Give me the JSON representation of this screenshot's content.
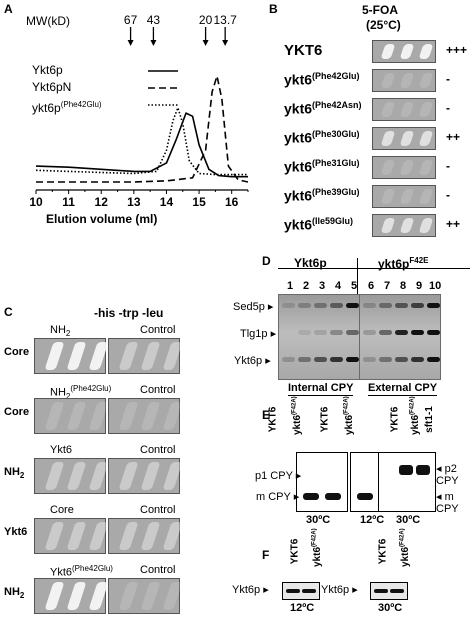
{
  "panelA": {
    "letter": "A",
    "mw_label": "MW(kD)",
    "mw_markers": [
      {
        "label": "67",
        "x": 12.9
      },
      {
        "label": "43",
        "x": 13.6
      },
      {
        "label": "20",
        "x": 15.2
      },
      {
        "label": "13.7",
        "x": 15.8
      }
    ],
    "legend": [
      {
        "name": "Ykt6p",
        "style": "solid"
      },
      {
        "name": "Ykt6pN",
        "style": "dashed"
      },
      {
        "name": "ykt6p(Phe42Glu)",
        "base": "ykt6p",
        "sup": "(Phe42Glu)",
        "style": "dotted"
      }
    ],
    "chart_data": {
      "type": "line",
      "xlabel": "Elution volume (ml)",
      "xlim": [
        10,
        16.5
      ],
      "x_ticks": [
        "10",
        "11",
        "12",
        "13",
        "14",
        "15",
        "16"
      ],
      "ylim": [
        0,
        1
      ],
      "series": [
        {
          "name": "Ykt6p",
          "style": "solid",
          "x": [
            10,
            11,
            12,
            13,
            13.5,
            14,
            14.3,
            14.6,
            14.8,
            15.0,
            15.3,
            15.6,
            16,
            16.5
          ],
          "y": [
            0.15,
            0.14,
            0.12,
            0.1,
            0.1,
            0.18,
            0.4,
            0.65,
            0.62,
            0.35,
            0.12,
            0.06,
            0.05,
            0.05
          ]
        },
        {
          "name": "Ykt6pN",
          "style": "dashed",
          "x": [
            10,
            11,
            12,
            13,
            14,
            14.8,
            15.2,
            15.4,
            15.55,
            15.7,
            15.9,
            16.2,
            16.5
          ],
          "y": [
            0.0,
            0.0,
            0.0,
            0.0,
            0.01,
            0.04,
            0.3,
            0.85,
            1.0,
            0.78,
            0.15,
            0.02,
            0.0
          ]
        },
        {
          "name": "ykt6p(Phe42Glu)",
          "style": "dotted",
          "x": [
            10,
            11,
            12,
            13,
            13.7,
            14.0,
            14.2,
            14.35,
            14.5,
            14.7,
            15.0,
            15.5,
            16,
            16.5
          ],
          "y": [
            0.11,
            0.1,
            0.09,
            0.08,
            0.1,
            0.3,
            0.58,
            0.7,
            0.55,
            0.2,
            0.08,
            0.07,
            0.07,
            0.07
          ]
        }
      ]
    }
  },
  "panelB": {
    "letter": "B",
    "title": "5-FOA",
    "subtitle": "(25°C)",
    "rows": [
      {
        "base": "YKT6",
        "sup": "",
        "growth": "+++",
        "level": 3
      },
      {
        "base": "ykt6",
        "sup": "(Phe42Glu)",
        "growth": "-",
        "level": 0
      },
      {
        "base": "ykt6",
        "sup": "(Phe42Asn)",
        "growth": "-",
        "level": 0
      },
      {
        "base": "ykt6",
        "sup": "(Phe30Glu)",
        "growth": "++",
        "level": 2
      },
      {
        "base": "ykt6",
        "sup": "(Phe31Glu)",
        "growth": "-",
        "level": 0
      },
      {
        "base": "ykt6",
        "sup": "(Phe39Glu)",
        "growth": "-",
        "level": 0
      },
      {
        "base": "ykt6",
        "sup": "(Ile59Glu)",
        "growth": "++",
        "level": 2
      }
    ]
  },
  "panelC": {
    "letter": "C",
    "header": "-his -trp -leu",
    "rows": [
      {
        "row_label": "Core",
        "left_base": "NH",
        "left_sub": "2",
        "left_sup": "",
        "right": "Control",
        "left_growth": 3,
        "right_growth": 1
      },
      {
        "row_label": "Core",
        "left_base": "NH",
        "left_sub": "2",
        "left_sup": "(Phe42Glu)",
        "right": "Control",
        "left_growth": 0,
        "right_growth": 0
      },
      {
        "row_label": "NH",
        "row_sub": "2",
        "left_base": "Ykt6",
        "left_sub": "",
        "left_sup": "",
        "right": "Control",
        "left_growth": 1,
        "right_growth": 1
      },
      {
        "row_label": "Ykt6",
        "left_base": "Core",
        "left_sub": "",
        "left_sup": "",
        "right": "Control",
        "left_growth": 1,
        "right_growth": 1
      },
      {
        "row_label": "NH",
        "row_sub": "2",
        "left_base": "Ykt6",
        "left_sub": "",
        "left_sup": "(Phe42Glu)",
        "right": "Control",
        "left_growth": 3,
        "right_growth": 0
      }
    ]
  },
  "panelD": {
    "letter": "D",
    "group1": "Ykt6p",
    "group2_base": "ykt6p",
    "group2_sup": "F42E",
    "lanes": [
      "1",
      "2",
      "3",
      "4",
      "5",
      "6",
      "7",
      "8",
      "9",
      "10"
    ],
    "band_labels": [
      "Sed5p",
      "Tlg1p",
      "Ykt6p"
    ]
  },
  "panelE": {
    "letter": "E",
    "internal_title": "Internal CPY",
    "external_title": "External CPY",
    "wt_label": "YKT6",
    "mut_base": "ykt6",
    "mut_sup": "(F42A)",
    "sft_label": "sft1-1",
    "p1": "p1 CPY",
    "m_left": "m CPY",
    "p2": "p2 CPY",
    "m_right": "m CPY",
    "temps": [
      "30ºC",
      "12ºC",
      "30ºC"
    ]
  },
  "panelF": {
    "letter": "F",
    "wt_label": "YKT6",
    "mut_base": "ykt6",
    "mut_sup": "(F42A)",
    "band_label": "Ykt6p",
    "temps": [
      "12ºC",
      "30ºC"
    ]
  }
}
